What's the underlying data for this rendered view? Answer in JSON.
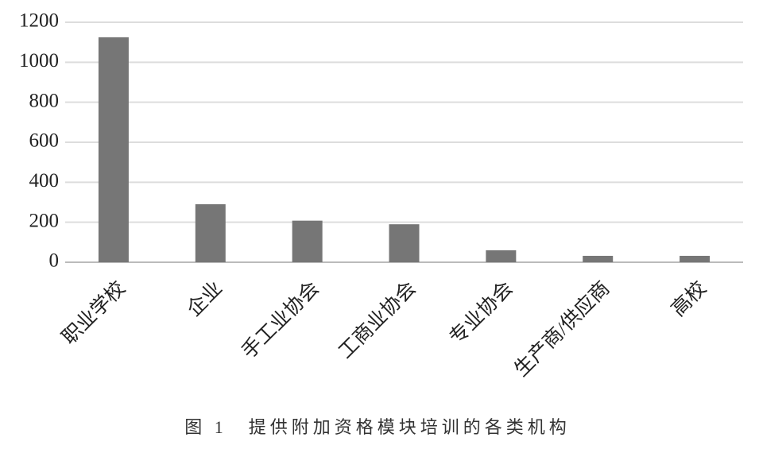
{
  "chart_data": {
    "type": "bar",
    "title": "图 1　提供附加资格模块培训的各类机构",
    "categories": [
      "职业学校",
      "企业",
      "手工业协会",
      "工商业协会",
      "专业协会",
      "生产商/供应商",
      "高校"
    ],
    "values": [
      1125,
      290,
      208,
      190,
      60,
      32,
      32
    ],
    "color": "#767676",
    "ylim": [
      0,
      1200
    ],
    "yticks": [
      0,
      200,
      400,
      600,
      800,
      1000,
      1200
    ],
    "grid": true
  }
}
